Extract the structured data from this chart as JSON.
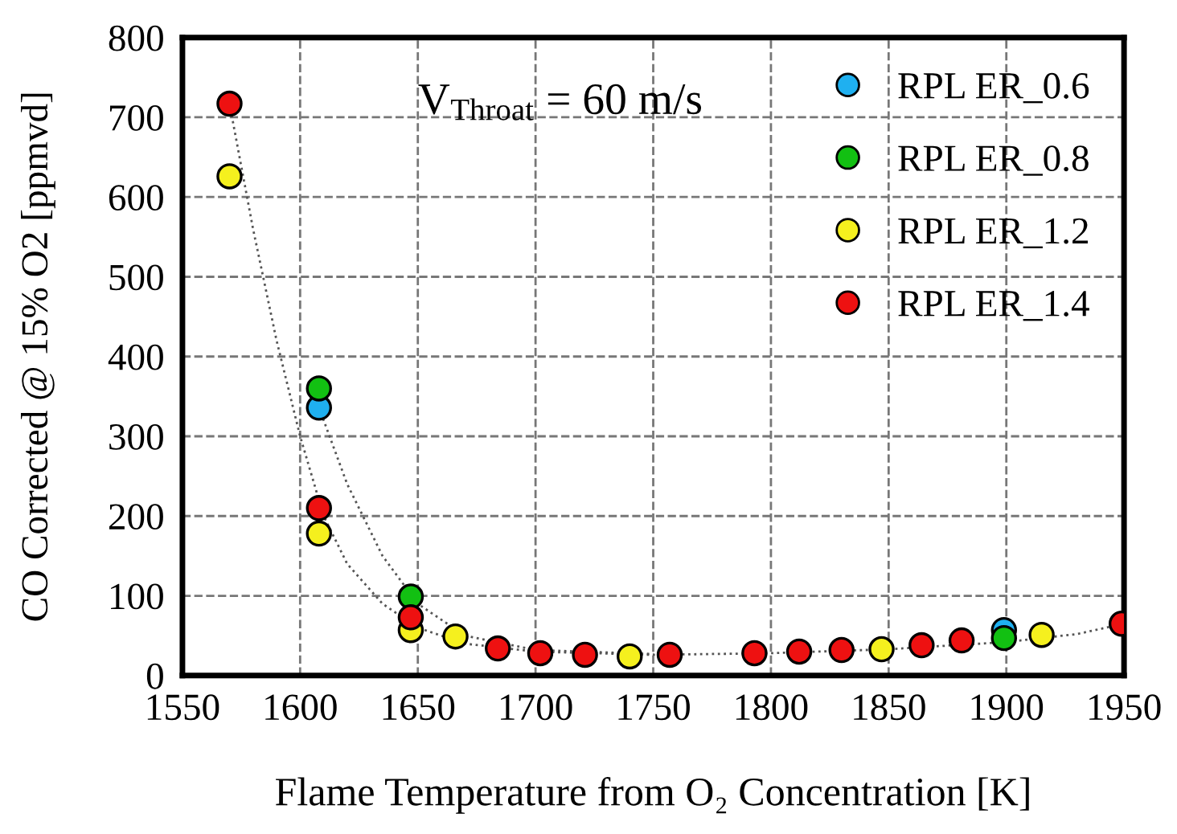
{
  "chart_data": {
    "type": "scatter",
    "xlabel": "Flame Temperature from O₂ Concentration [K]",
    "ylabel": "CO Corrected @ 15% O2 [ppmvd]",
    "annotations": [
      "V$_{Throat}$ = 60 m/s"
    ],
    "xlim": [
      1550,
      1950
    ],
    "ylim": [
      0,
      800
    ],
    "xticks": [
      1550,
      1600,
      1650,
      1700,
      1750,
      1800,
      1850,
      1900,
      1950
    ],
    "yticks": [
      0,
      100,
      200,
      300,
      400,
      500,
      600,
      700,
      800
    ],
    "grid": true,
    "legend": "top right",
    "marker": "circle",
    "series": [
      {
        "type": "line",
        "color": "#555555",
        "line_style": "dotted",
        "marker": "none",
        "x": [
          1570,
          1580,
          1590,
          1600,
          1610,
          1620,
          1635,
          1650,
          1670,
          1700,
          1750,
          1800,
          1850,
          1900,
          1930,
          1950
        ],
        "values": [
          717,
          560,
          420,
          300,
          200,
          140,
          90,
          60,
          40,
          30,
          26,
          28,
          33,
          42,
          52,
          65
        ]
      },
      {
        "type": "line",
        "color": "#555555",
        "line_style": "dotted",
        "marker": "none",
        "x": [
          1608,
          1620,
          1635,
          1650,
          1670,
          1700,
          1750
        ],
        "values": [
          336,
          240,
          150,
          90,
          50,
          32,
          27
        ]
      },
      {
        "name": "RPL ER_0.6",
        "color": "#1fb0f0",
        "x": [
          1608,
          1647,
          1684,
          1830,
          1864,
          1899
        ],
        "values": [
          336,
          null,
          null,
          null,
          null,
          57
        ]
      },
      {
        "name": "RPL ER_0.8",
        "color": "#12c012",
        "x": [
          1608,
          1647,
          1899
        ],
        "values": [
          360,
          99,
          47
        ]
      },
      {
        "name": "RPL ER_1.2",
        "color": "#f5f01e",
        "x": [
          1570,
          1608,
          1647,
          1666,
          1740,
          1847,
          1915
        ],
        "values": [
          626,
          178,
          57,
          49,
          24,
          33,
          51
        ]
      },
      {
        "name": "RPL ER_1.4",
        "color": "#ee1111",
        "x": [
          1570,
          1608,
          1647,
          1684,
          1702,
          1721,
          1757,
          1793,
          1812,
          1830,
          1864,
          1881,
          1949
        ],
        "values": [
          717,
          210,
          73,
          34,
          28,
          26,
          26,
          28,
          30,
          32,
          38,
          44,
          65
        ]
      }
    ]
  }
}
